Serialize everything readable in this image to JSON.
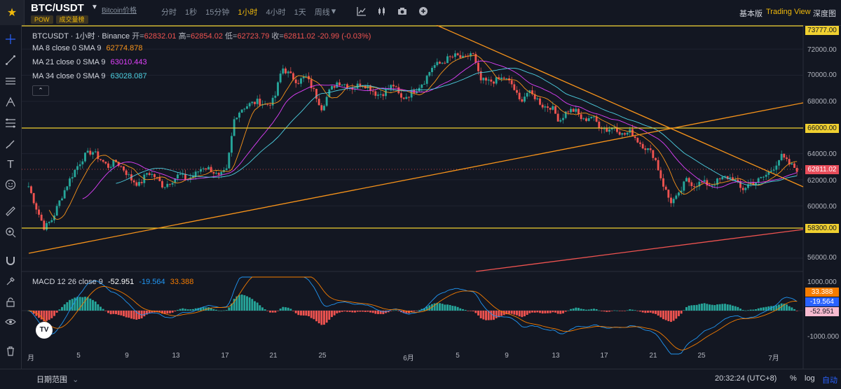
{
  "header": {
    "symbol": "BTC/USDT",
    "symbol_subname": "Bitcoin价格",
    "tags": [
      "POW",
      "成交量榜"
    ],
    "intervals": [
      "分时",
      "1秒",
      "15分钟",
      "1小时",
      "4小时",
      "1天",
      "周线"
    ],
    "active_interval": "1小时",
    "menu_right": [
      "基本版",
      "Trading View",
      "深度图"
    ],
    "active_view": "Trading View"
  },
  "legend": {
    "title": "BTCUSDT · 1小时 · Binance",
    "open_label": "开=",
    "open": "62832.01",
    "high_label": "高=",
    "high": "62854.02",
    "low_label": "低=",
    "low": "62723.79",
    "close_label": "收=",
    "close": "62811.02",
    "change": "-20.99 (-0.03%)",
    "ma": [
      {
        "label": "MA 8 close 0 SMA 9",
        "value": "62774.878",
        "color": "#f7931a"
      },
      {
        "label": "MA 21 close 0 SMA 9",
        "value": "63010.443",
        "color": "#e040fb"
      },
      {
        "label": "MA 34 close 0 SMA 9",
        "value": "63028.087",
        "color": "#4dd0e1"
      }
    ],
    "collapse": "⌃"
  },
  "macd": {
    "label": "MACD 12 26 close 9",
    "hist": "-52.951",
    "macd": "-19.564",
    "signal": "33.388"
  },
  "price_axis": [
    "72000.00",
    "70000.00",
    "68000.00",
    "64000.00",
    "62000.00",
    "60000.00",
    "56000.00"
  ],
  "macd_axis": [
    "1000.000",
    "-1000.000"
  ],
  "price_boxes": [
    {
      "label": "73777.00",
      "price": 73777,
      "bg": "#f0d030"
    },
    {
      "label": "66000.00",
      "price": 66000,
      "bg": "#f0d030"
    },
    {
      "label": "62811.02",
      "price": 62811,
      "bg": "#e74c5a"
    },
    {
      "label": "58300.00",
      "price": 58300,
      "bg": "#f0d030"
    }
  ],
  "macd_boxes": [
    {
      "label": "33.388",
      "bg": "#f57c00"
    },
    {
      "label": "-19.564",
      "bg": "#2962ff"
    },
    {
      "label": "-52.951",
      "bg": "#f8bbd0"
    }
  ],
  "date_axis": [
    "月",
    "5",
    "9",
    "13",
    "17",
    "21",
    "25",
    "6月",
    "5",
    "9",
    "13",
    "17",
    "21",
    "25",
    "7月"
  ],
  "footer": {
    "range": "日期范围",
    "time": "20:32:24 (UTC+8)",
    "pct": "%",
    "log": "log",
    "auto": "自动"
  },
  "colors": {
    "up": "#26a69a",
    "down": "#ef5350",
    "h_line": "#f0d030",
    "trend": "#f7931a"
  },
  "chart_data": {
    "type": "candlestick",
    "ylim": [
      55000,
      74500
    ],
    "horizontal_levels": [
      73777,
      66000,
      58300
    ],
    "close_series": [
      61500,
      59800,
      58300,
      59000,
      60500,
      61800,
      62900,
      63800,
      64200,
      63600,
      63000,
      63400,
      62800,
      62000,
      61600,
      62600,
      62200,
      61500,
      61900,
      62400,
      62000,
      62400,
      63000,
      62800,
      62200,
      62700,
      66800,
      67500,
      67800,
      68000,
      67700,
      68100,
      70600,
      70000,
      69500,
      69900,
      68800,
      67500,
      68800,
      69500,
      69300,
      69000,
      69400,
      69100,
      68500,
      68700,
      69300,
      68200,
      68500,
      69000,
      69600,
      70700,
      70900,
      71300,
      71500,
      71200,
      71800,
      69600,
      69500,
      69600,
      69800,
      69300,
      68000,
      68700,
      68300,
      67600,
      67600,
      66500,
      67300,
      67300,
      66500,
      66900,
      66200,
      65800,
      66100,
      65400,
      65700,
      64900,
      64400,
      63800,
      61800,
      60300,
      60700,
      62000,
      61600,
      61800,
      61600,
      61900,
      62200,
      62100,
      61200,
      61700,
      61900,
      62300,
      62900,
      63800,
      63200,
      62811
    ]
  }
}
